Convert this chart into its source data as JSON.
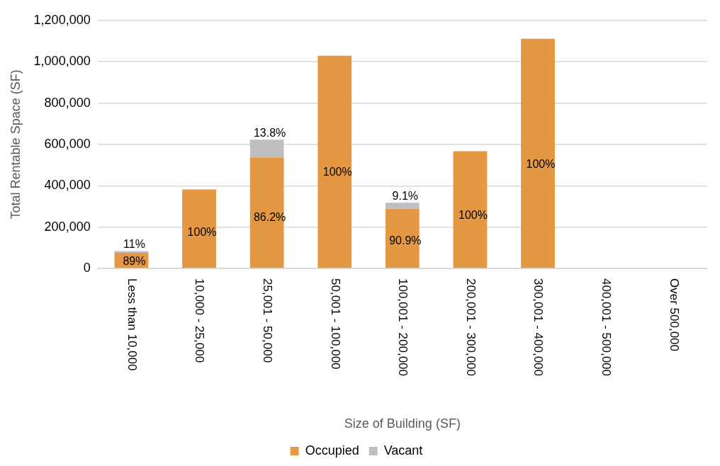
{
  "chart_data": {
    "type": "bar",
    "stacked": true,
    "xlabel": "Size of Building (SF)",
    "ylabel": "Total Rentable Space (SF)",
    "categories": [
      "Less than 10,000",
      "10,000 - 25,000",
      "25,001 - 50,000",
      "50,001 - 100,000",
      "100,001 - 200,000",
      "200,001 - 300,000",
      "300,001 - 400,000",
      "400,001 - 500,000",
      "Over 500,000"
    ],
    "series": [
      {
        "name": "Occupied",
        "color": "#e49844",
        "values": [
          75000,
          382000,
          537000,
          1029000,
          289000,
          567000,
          1111000,
          null,
          null
        ]
      },
      {
        "name": "Vacant",
        "color": "#bfbfbf",
        "values": [
          9300,
          null,
          86000,
          null,
          29000,
          null,
          null,
          null,
          null
        ]
      }
    ],
    "annotations": [
      "89%",
      "11%",
      "100%",
      "86.2%",
      "13.8%",
      "100%",
      "90.9%",
      "9.1%",
      "100%",
      "100%"
    ],
    "ylim": [
      0,
      1200000
    ],
    "yticks": [
      {
        "value": 0,
        "label": "0"
      },
      {
        "value": 200000,
        "label": "200,000"
      },
      {
        "value": 400000,
        "label": "400,000"
      },
      {
        "value": 600000,
        "label": "600,000"
      },
      {
        "value": 800000,
        "label": "800,000"
      },
      {
        "value": 1000000,
        "label": "1,000,000"
      },
      {
        "value": 1200000,
        "label": "1,200,000"
      }
    ],
    "grid": "y",
    "legend": "bottom"
  }
}
